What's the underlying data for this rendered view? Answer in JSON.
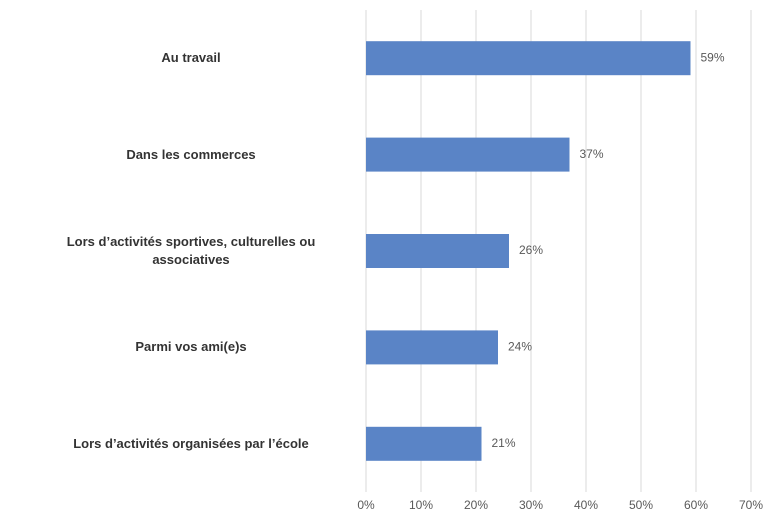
{
  "chart_data": {
    "type": "hbar",
    "categories": [
      "Au travail",
      "Dans les commerces",
      "Lors d’activités sportives, culturelles ou associatives",
      "Parmi vos ami(e)s",
      "Lors d’activités organisées par l’école"
    ],
    "values": [
      59,
      37,
      26,
      24,
      21
    ],
    "value_labels": [
      "59%",
      "37%",
      "26%",
      "24%",
      "21%"
    ],
    "color": "#5a84c6",
    "xlim": [
      0,
      70
    ],
    "xticks": [
      {
        "value": 0,
        "label": "0%"
      },
      {
        "value": 10,
        "label": "10%"
      },
      {
        "value": 20,
        "label": "20%"
      },
      {
        "value": 30,
        "label": "30%"
      },
      {
        "value": 40,
        "label": "40%"
      },
      {
        "value": 50,
        "label": "50%"
      },
      {
        "value": 60,
        "label": "60%"
      },
      {
        "value": 70,
        "label": "70%"
      }
    ],
    "grid": true
  }
}
